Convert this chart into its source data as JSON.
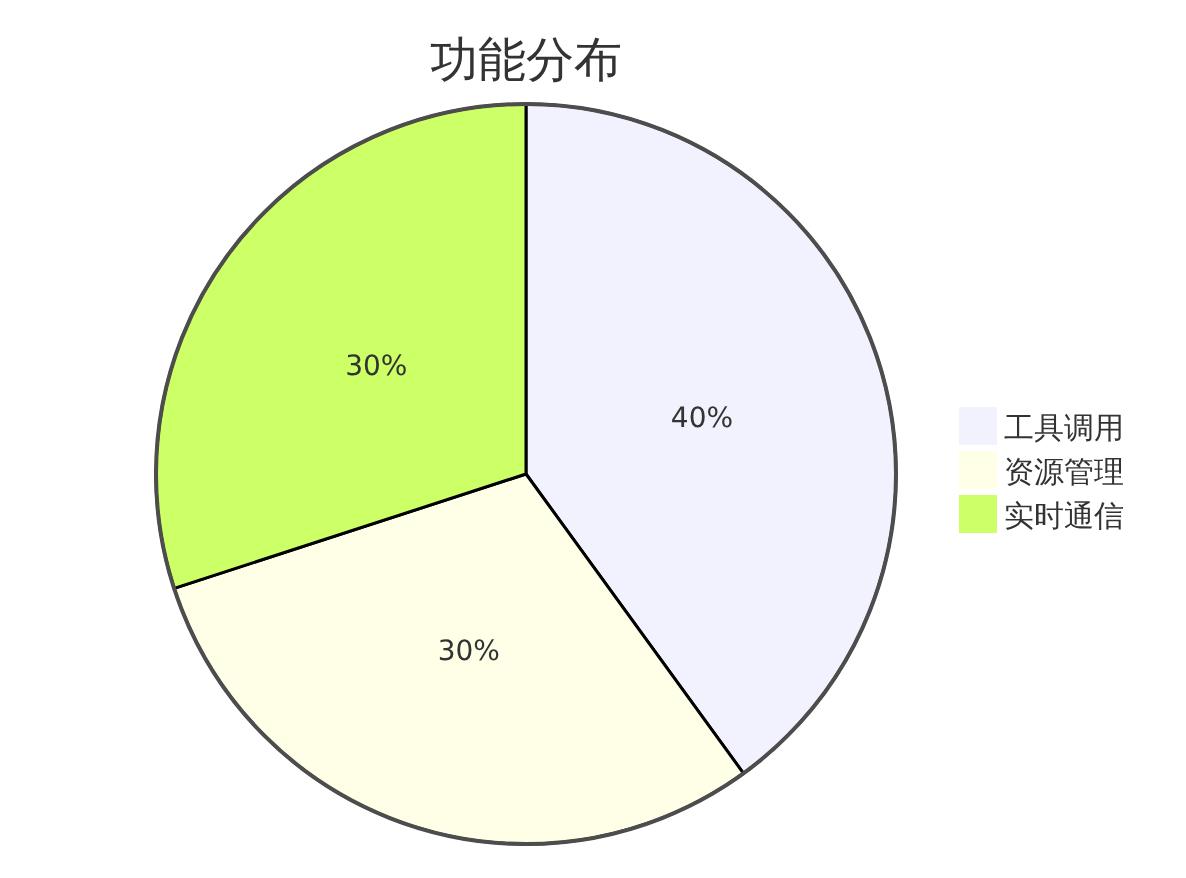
{
  "chart_data": {
    "type": "pie",
    "title": "功能分布",
    "categories": [
      "工具调用",
      "资源管理",
      "实时通信"
    ],
    "values": [
      40,
      30,
      30
    ],
    "colors": [
      "#f2f2ff",
      "#ffffe8",
      "#cdff66"
    ],
    "value_labels": [
      "40%",
      "30%",
      "30%"
    ],
    "legend": "right"
  }
}
